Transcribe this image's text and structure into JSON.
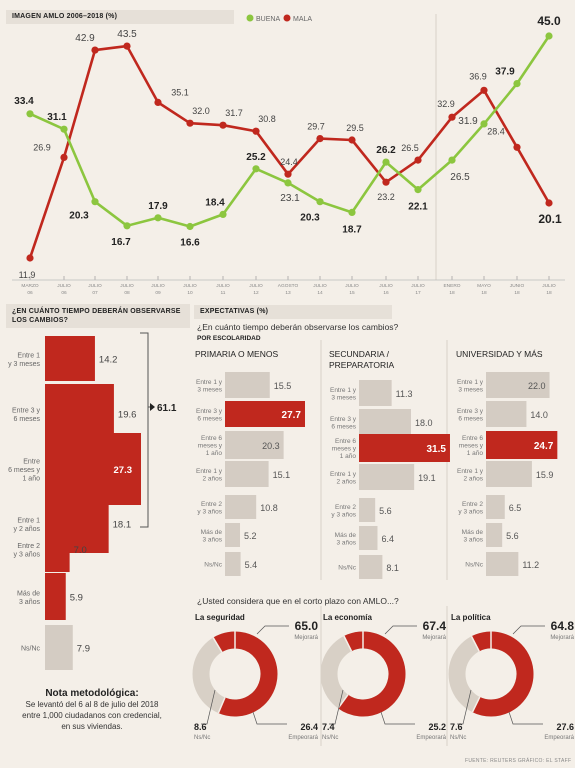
{
  "line_chart": {
    "title": "IMAGEN AMLO 2006–2018 (%)",
    "legend": [
      {
        "label": "BUENA",
        "color": "#8cc63f"
      },
      {
        "label": "MALA",
        "color": "#c0281e"
      }
    ]
  },
  "expect_header": "EXPECTATIVAS (%)",
  "left_header": "¿EN CUÁNTO TIEMPO DEBERÁN OBSERVARSE LOS CAMBIOS?",
  "q1": "¿En cuánto tiempo deberán observarse los cambios?",
  "por_escolaridad": "POR ESCOLARIDAD",
  "q2": "¿Usted considera que en el corto plazo con AMLO...?",
  "nota": {
    "title": "Nota metodológica:",
    "line1": "Se levantó del 6 al 8 de julio del 2018",
    "line2": "entre 1,000 ciudadanos con credencial,",
    "line3": "en sus viviendas."
  },
  "source": "FUENTE: REUTERS    GRÁFICO: EL STAFF",
  "colors": {
    "buena": "#8cc63f",
    "mala": "#c0281e",
    "gray": "#d4ccc3",
    "bg": "#f4efe8"
  },
  "chart_data": [
    {
      "type": "line",
      "title": "IMAGEN AMLO 2006–2018 (%)",
      "categories": [
        [
          "MARZO",
          "06"
        ],
        [
          "JULIO",
          "06"
        ],
        [
          "JULIO",
          "07"
        ],
        [
          "JULIO",
          "08"
        ],
        [
          "JULIO",
          "09"
        ],
        [
          "JULIO",
          "10"
        ],
        [
          "JULIO",
          "11"
        ],
        [
          "JULIO",
          "12"
        ],
        [
          "AGOSTO",
          "13"
        ],
        [
          "JULIO",
          "14"
        ],
        [
          "JULIO",
          "15"
        ],
        [
          "JULIO",
          "16"
        ],
        [
          "JULIO",
          "17"
        ],
        [
          "ENERO",
          "18"
        ],
        [
          "MAYO",
          "18"
        ],
        [
          "JUNIO",
          "18"
        ],
        [
          "JULIO",
          "18"
        ]
      ],
      "series": [
        {
          "name": "BUENA",
          "color": "#8cc63f",
          "values": [
            33.4,
            31.1,
            20.3,
            16.7,
            17.9,
            16.6,
            18.4,
            25.2,
            23.1,
            20.3,
            18.7,
            26.2,
            22.1,
            26.5,
            31.9,
            37.9,
            45.0
          ]
        },
        {
          "name": "MALA",
          "color": "#c0281e",
          "values": [
            11.9,
            26.9,
            42.9,
            43.5,
            35.1,
            32.0,
            31.7,
            30.8,
            24.4,
            29.7,
            29.5,
            23.2,
            26.5,
            32.9,
            36.9,
            28.4,
            20.1
          ]
        }
      ]
    },
    {
      "type": "bar",
      "title": "¿EN CUÁNTO TIEMPO DEBERÁN OBSERVARSE LOS CAMBIOS?",
      "categories": [
        [
          "Entre 1",
          "y 3 meses"
        ],
        [
          "Entre 3 y",
          "6 meses"
        ],
        [
          "Entre",
          "6 meses y",
          "1 año"
        ],
        [
          "Entre 1",
          "y 2 años"
        ],
        [
          "Entre 2",
          "y 3 años"
        ],
        [
          "Más de",
          "3 años"
        ],
        [
          "Ns/Nc"
        ]
      ],
      "values": [
        14.2,
        19.6,
        27.3,
        18.1,
        7.0,
        5.9,
        7.9
      ],
      "bar_colors": [
        "#c0281e",
        "#c0281e",
        "#c0281e",
        "#c0281e",
        "#c0281e",
        "#c0281e",
        "#d4ccc3"
      ],
      "bracket_total": "61.1"
    },
    {
      "type": "bar",
      "title": "PRIMARIA O MENOS",
      "categories": [
        [
          "Entre 1 y",
          "3 meses"
        ],
        [
          "Entre 3 y",
          "6 meses"
        ],
        [
          "Entre 6",
          "meses y",
          "1 año"
        ],
        [
          "Entre 1 y",
          "2 años"
        ],
        [
          "Entre 2",
          "y 3 años"
        ],
        [
          "Más de",
          "3 años"
        ],
        [
          "Ns/Nc"
        ]
      ],
      "values": [
        15.5,
        27.7,
        20.3,
        15.1,
        10.8,
        5.2,
        5.4
      ],
      "highlight": 1
    },
    {
      "type": "bar",
      "title": "SECUNDARIA / PREPARATORIA",
      "categories": [
        [
          "Entre 1 y",
          "3 meses"
        ],
        [
          "Entre 3 y",
          "6 meses"
        ],
        [
          "Entre 6",
          "meses y",
          "1 año"
        ],
        [
          "Entre 1 y",
          "2 años"
        ],
        [
          "Entre 2",
          "y 3 años"
        ],
        [
          "Más de",
          "3 años"
        ],
        [
          "Ns/Nc"
        ]
      ],
      "values": [
        11.3,
        18.0,
        31.5,
        19.1,
        5.6,
        6.4,
        8.1
      ],
      "highlight": 2
    },
    {
      "type": "bar",
      "title": "UNIVERSIDAD Y MÁS",
      "categories": [
        [
          "Entre 1 y",
          "3 meses"
        ],
        [
          "Entre 3 y",
          "6 meses"
        ],
        [
          "Entre 6",
          "meses y",
          "1 año"
        ],
        [
          "Entre 1 y",
          "2 años"
        ],
        [
          "Entre 2",
          "y 3 años"
        ],
        [
          "Más de",
          "3 años"
        ],
        [
          "Ns/Nc"
        ]
      ],
      "values": [
        22.0,
        14.0,
        24.7,
        15.9,
        6.5,
        5.6,
        11.2
      ],
      "highlight": 2
    },
    {
      "type": "pie",
      "title": "La seguridad",
      "values": [
        {
          "label": "Mejorará",
          "value": "65.0"
        },
        {
          "label": "Empeorará",
          "value": "26.4"
        },
        {
          "label": "Ns/Nc",
          "value": "8.6"
        }
      ]
    },
    {
      "type": "pie",
      "title": "La economía",
      "values": [
        {
          "label": "Mejorará",
          "value": "67.4"
        },
        {
          "label": "Empeorará",
          "value": "25.2"
        },
        {
          "label": "Ns/Nc",
          "value": "7.4"
        }
      ]
    },
    {
      "type": "pie",
      "title": "La política",
      "values": [
        {
          "label": "Mejorará",
          "value": "64.8"
        },
        {
          "label": "Empeorará",
          "value": "27.6"
        },
        {
          "label": "Ns/Nc",
          "value": "7.6"
        }
      ]
    }
  ]
}
